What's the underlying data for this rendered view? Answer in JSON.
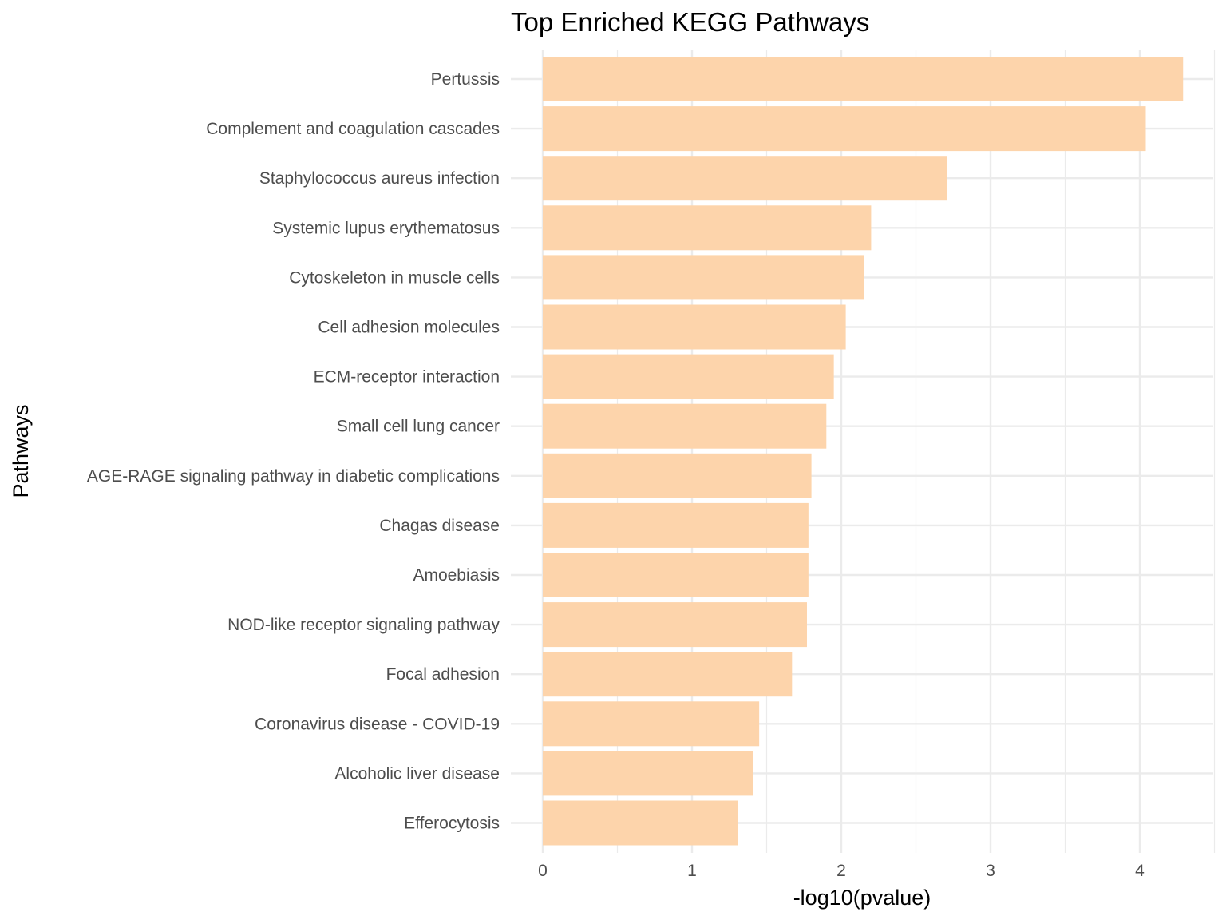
{
  "chart_data": {
    "type": "bar",
    "orientation": "horizontal",
    "title": "Top Enriched KEGG Pathways",
    "xlabel": "-log10(pvalue)",
    "ylabel": "Pathways",
    "xlim": [
      0,
      4.5
    ],
    "xticks": [
      0,
      1,
      2,
      3,
      4
    ],
    "grid": true,
    "bar_color": "#FDD4AB",
    "categories": [
      "Pertussis",
      "Complement and coagulation cascades",
      "Staphylococcus aureus infection",
      "Systemic lupus erythematosus",
      "Cytoskeleton in muscle cells",
      "Cell adhesion molecules",
      "ECM-receptor interaction",
      "Small cell lung cancer",
      "AGE-RAGE signaling pathway in diabetic complications",
      "Chagas disease",
      "Amoebiasis",
      "NOD-like receptor signaling pathway",
      "Focal adhesion",
      "Coronavirus disease - COVID-19",
      "Alcoholic liver disease",
      "Efferocytosis"
    ],
    "values": [
      4.29,
      4.04,
      2.71,
      2.2,
      2.15,
      2.03,
      1.95,
      1.9,
      1.8,
      1.78,
      1.78,
      1.77,
      1.67,
      1.45,
      1.41,
      1.31
    ]
  }
}
